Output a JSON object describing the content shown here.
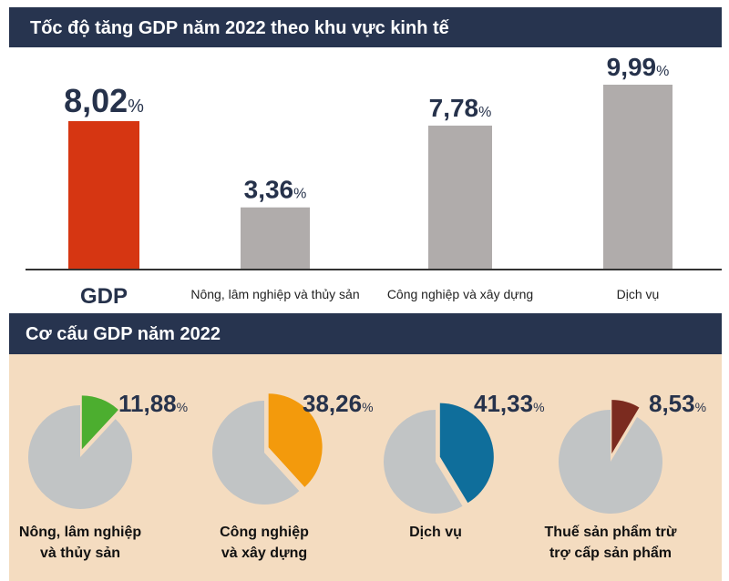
{
  "chart_data": [
    {
      "type": "bar",
      "title": "Tốc độ tăng GDP năm 2022 theo khu vực kinh tế",
      "categories": [
        "GDP",
        "Nông, lâm nghiệp và thủy sản",
        "Công nghiệp và xây dựng",
        "Dịch vụ"
      ],
      "values": [
        8.02,
        3.36,
        7.78,
        9.99
      ],
      "value_labels": [
        "8,02",
        "3,36",
        "7,78",
        "9,99"
      ],
      "unit": "%",
      "colors": [
        "#d63612",
        "#b0acab",
        "#b0acab",
        "#b0acab"
      ],
      "label_color_highlight": "#d63612",
      "label_color": "#26324b",
      "ylim": [
        0,
        10.5
      ],
      "grid": false
    },
    {
      "type": "pie",
      "title": "Cơ cấu GDP năm 2022",
      "pies": [
        {
          "label_lines": [
            "Nông, lâm nghiệp",
            "và thủy sản"
          ],
          "value": 11.88,
          "value_label": "11,88",
          "color": "#4cae2f"
        },
        {
          "label_lines": [
            "Công nghiệp",
            "và xây dựng"
          ],
          "value": 38.26,
          "value_label": "38,26",
          "color": "#f39a0c"
        },
        {
          "label_lines": [
            "Dịch vụ"
          ],
          "value": 41.33,
          "value_label": "41,33",
          "color": "#0f6e9b"
        },
        {
          "label_lines": [
            "Thuế sản phẩm trừ",
            "trợ cấp sản phẩm"
          ],
          "value": 8.53,
          "value_label": "8,53",
          "color": "#7b2b1f"
        }
      ],
      "unit": "%",
      "rest_color": "#c1c4c5",
      "background": "#f4dcc0"
    }
  ],
  "header_color": "#27344f"
}
